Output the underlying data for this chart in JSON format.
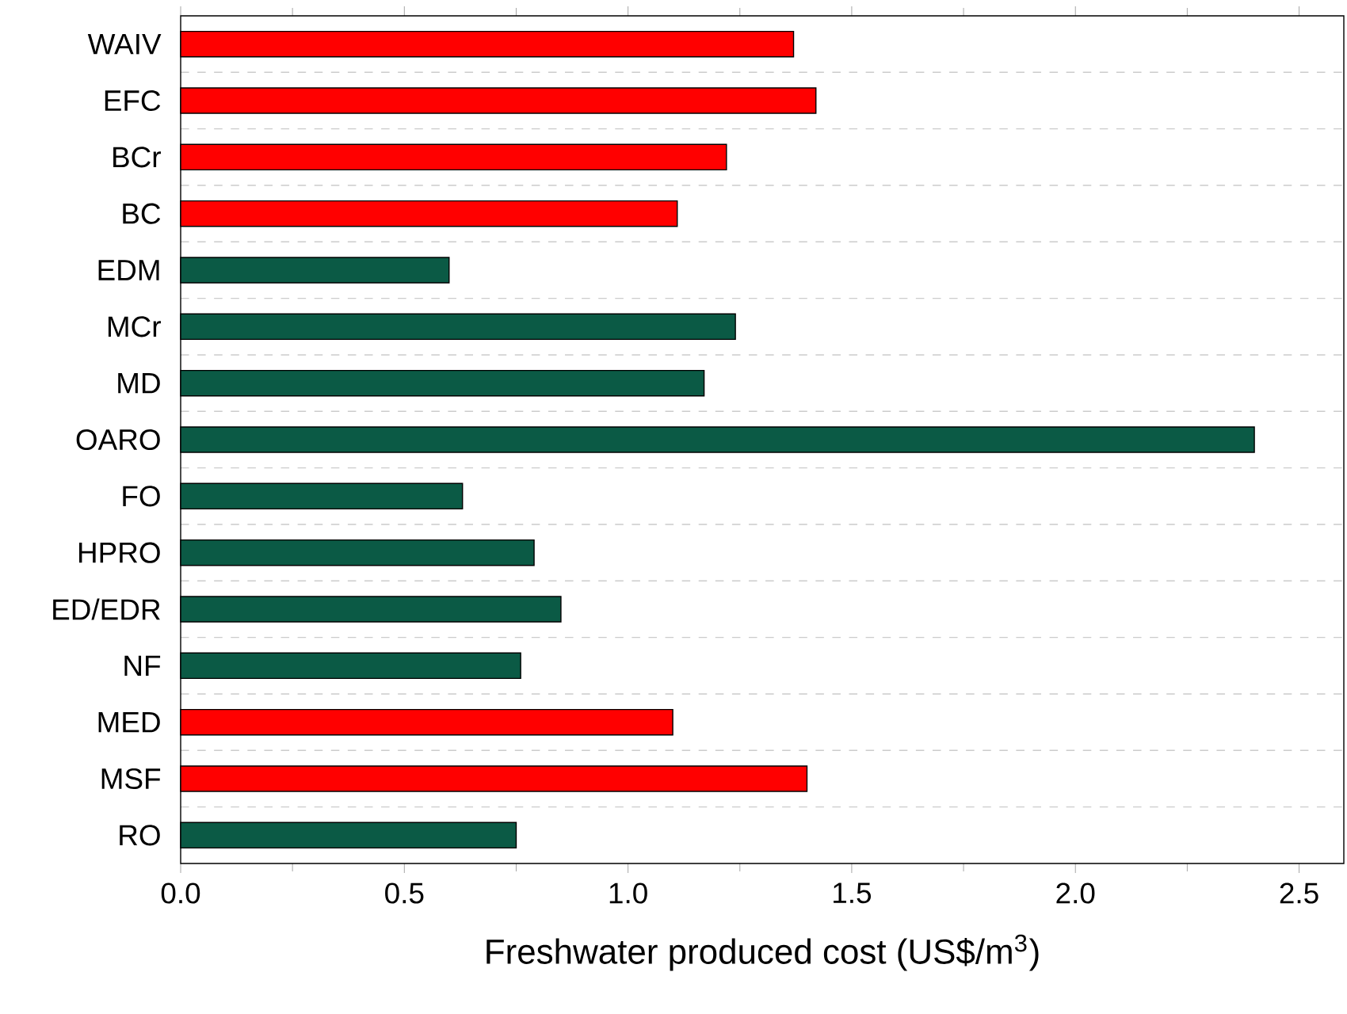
{
  "chart_data": {
    "type": "bar",
    "orientation": "horizontal",
    "xlabel": "Freshwater produced cost (US$/m$^{3}$)",
    "categories": [
      "WAIV",
      "EFC",
      "BCr",
      "BC",
      "EDM",
      "MCr",
      "MD",
      "OARO",
      "FO",
      "HPRO",
      "ED/EDR",
      "NF",
      "MED",
      "MSF",
      "RO"
    ],
    "values": [
      1.37,
      1.42,
      1.22,
      1.11,
      0.6,
      1.24,
      1.17,
      2.4,
      0.63,
      0.79,
      0.85,
      0.76,
      1.1,
      1.4,
      0.75
    ],
    "colors": [
      "#ff0000",
      "#ff0000",
      "#ff0000",
      "#ff0000",
      "#0b5a45",
      "#0b5a45",
      "#0b5a45",
      "#0b5a45",
      "#0b5a45",
      "#0b5a45",
      "#0b5a45",
      "#0b5a45",
      "#ff0000",
      "#ff0000",
      "#0b5a45"
    ],
    "xlim": [
      0,
      2.6
    ],
    "xticks": [
      {
        "value": 0,
        "label": "0.0"
      },
      {
        "value": 0.5,
        "label": "0.5"
      },
      {
        "value": 1,
        "label": "1.0"
      },
      {
        "value": 1.5,
        "label": "1.5"
      },
      {
        "value": 2,
        "label": "2.0"
      },
      {
        "value": 2.5,
        "label": "2.5"
      }
    ],
    "grid": "y"
  }
}
